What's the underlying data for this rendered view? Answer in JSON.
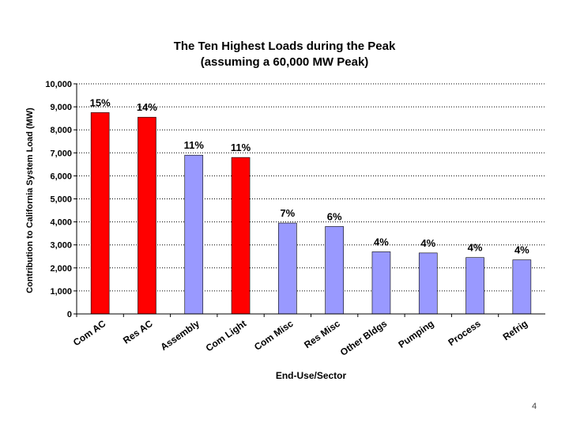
{
  "slide": {
    "page_number": "4"
  },
  "chart_data": {
    "type": "bar",
    "title": "The Ten Highest Loads during the Peak",
    "subtitle": "(assuming a 60,000 MW Peak)",
    "xlabel": "End-Use/Sector",
    "ylabel": "Contribution to California System Load (MW)",
    "ylim": [
      0,
      10000
    ],
    "y_ticks": [
      0,
      1000,
      2000,
      3000,
      4000,
      5000,
      6000,
      7000,
      8000,
      9000,
      10000
    ],
    "y_tick_labels": [
      "0",
      "1,000",
      "2,000",
      "3,000",
      "4,000",
      "5,000",
      "6,000",
      "7,000",
      "8,000",
      "9,000",
      "10,000"
    ],
    "grid": "horizontal dotted",
    "categories": [
      "Com AC",
      "Res AC",
      "Assembly",
      "Com Light",
      "Com Misc",
      "Res Misc",
      "Other Bldgs",
      "Pumping",
      "Process",
      "Refrig"
    ],
    "values": [
      8750,
      8550,
      6900,
      6800,
      3950,
      3800,
      2700,
      2650,
      2450,
      2350
    ],
    "data_labels": [
      "15%",
      "14%",
      "11%",
      "11%",
      "7%",
      "6%",
      "4%",
      "4%",
      "4%",
      "4%"
    ],
    "bar_colors": [
      "#ff0000",
      "#ff0000",
      "#9999ff",
      "#ff0000",
      "#9999ff",
      "#9999ff",
      "#9999ff",
      "#9999ff",
      "#9999ff",
      "#9999ff"
    ]
  }
}
